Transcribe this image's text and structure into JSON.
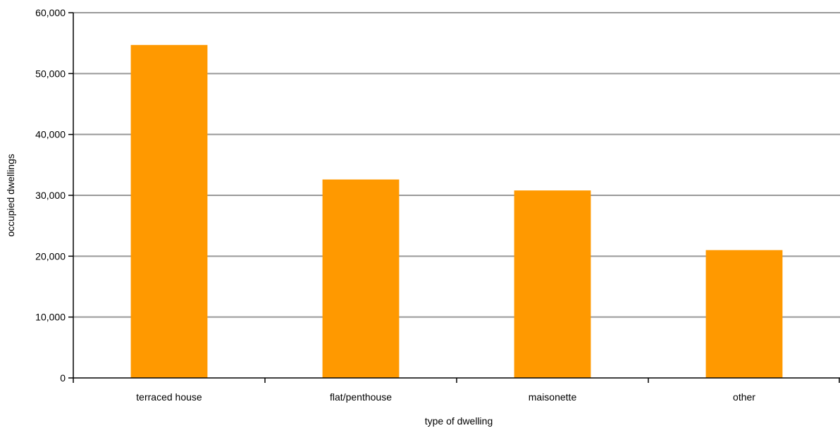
{
  "chart_data": {
    "type": "bar",
    "title": "",
    "xlabel": "type of dwelling",
    "ylabel": "occupied dwellings",
    "categories": [
      "terraced house",
      "flat/penthouse",
      "maisonette",
      "other"
    ],
    "values": [
      54700,
      32600,
      30800,
      21000
    ],
    "ylim": [
      0,
      60000
    ],
    "yticks": [
      0,
      10000,
      20000,
      30000,
      40000,
      50000,
      60000
    ],
    "ytick_labels": [
      "0",
      "10,000",
      "20,000",
      "30,000",
      "40,000",
      "50,000",
      "60,000"
    ],
    "grid": true,
    "legend": "none",
    "colors": {
      "bar": "#ff9900",
      "grid": "#999999",
      "axis": "#000000"
    }
  }
}
